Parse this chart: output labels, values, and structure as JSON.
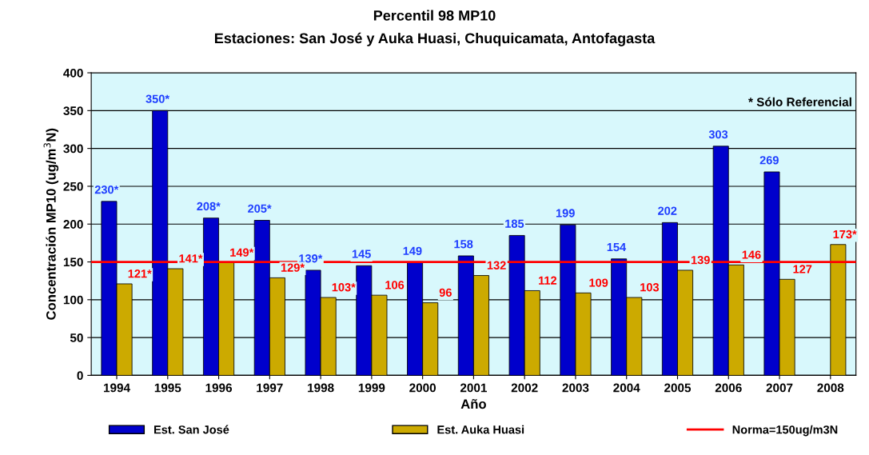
{
  "chart_data": {
    "type": "bar",
    "title": "Percentil 98 MP10",
    "subtitle": "Estaciones: San José y Auka Huasi, Chuquicamata, Antofagasta",
    "xlabel": "Año",
    "ylabel": "Concentración MP10 (ug/m$^{3}$N)",
    "categories": [
      "1994",
      "1995",
      "1996",
      "1997",
      "1998",
      "1999",
      "2000",
      "2001",
      "2002",
      "2003",
      "2004",
      "2005",
      "2006",
      "2007",
      "2008"
    ],
    "series": [
      {
        "name": "Est. San José",
        "color": "#0000cc",
        "values": [
          230,
          350,
          208,
          205,
          139,
          145,
          149,
          158,
          185,
          199,
          154,
          202,
          303,
          269,
          null
        ],
        "value_labels": [
          "230*",
          "350*",
          "208*",
          "205*",
          "139*",
          "145",
          "149",
          "158",
          "185",
          "199",
          "154",
          "202",
          "303",
          "269",
          null
        ]
      },
      {
        "name": "Est. Auka Huasi",
        "color": "#ccaa00",
        "values": [
          121,
          141,
          149,
          129,
          103,
          106,
          96,
          132,
          112,
          109,
          103,
          139,
          146,
          127,
          173
        ],
        "value_labels": [
          "121*",
          "141*",
          "149*",
          "129*",
          "103*",
          "106",
          "96",
          "132",
          "112",
          "109",
          "103",
          "139",
          "146",
          "127",
          "173*"
        ]
      }
    ],
    "ylim": [
      0,
      400
    ],
    "yticks": [
      0,
      50,
      100,
      150,
      200,
      250,
      300,
      350,
      400
    ],
    "grid": "y",
    "legend": "bottom",
    "ref_lines": [
      {
        "axis": "y",
        "value": 150,
        "label": "Norma=150ug/m3N",
        "color": "#ff0000"
      }
    ],
    "annotations": [
      "* Sólo Referencial"
    ]
  }
}
